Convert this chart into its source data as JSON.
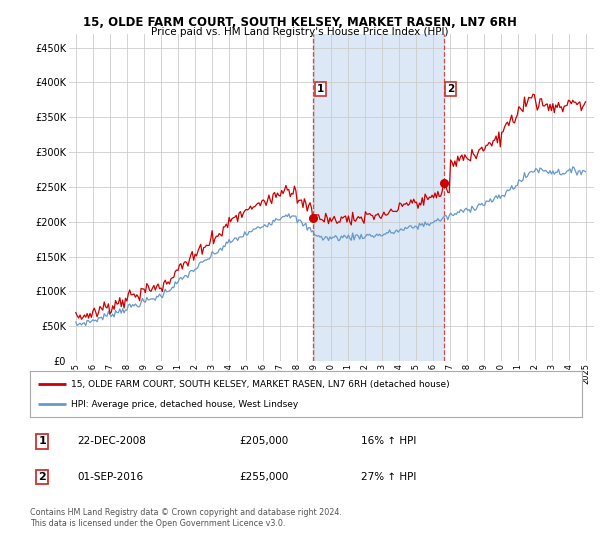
{
  "title": "15, OLDE FARM COURT, SOUTH KELSEY, MARKET RASEN, LN7 6RH",
  "subtitle": "Price paid vs. HM Land Registry's House Price Index (HPI)",
  "red_label": "15, OLDE FARM COURT, SOUTH KELSEY, MARKET RASEN, LN7 6RH (detached house)",
  "blue_label": "HPI: Average price, detached house, West Lindsey",
  "annotation1_date": "22-DEC-2008",
  "annotation1_price": "£205,000",
  "annotation1_hpi": "16% ↑ HPI",
  "annotation2_date": "01-SEP-2016",
  "annotation2_price": "£255,000",
  "annotation2_hpi": "27% ↑ HPI",
  "footer": "Contains HM Land Registry data © Crown copyright and database right 2024.\nThis data is licensed under the Open Government Licence v3.0.",
  "ylim": [
    0,
    470000
  ],
  "yticks": [
    0,
    50000,
    100000,
    150000,
    200000,
    250000,
    300000,
    350000,
    400000,
    450000
  ],
  "ytick_labels": [
    "£0",
    "£50K",
    "£100K",
    "£150K",
    "£200K",
    "£250K",
    "£300K",
    "£350K",
    "£400K",
    "£450K"
  ],
  "sale1_year": 2008.97,
  "sale1_value": 205000,
  "sale2_year": 2016.67,
  "sale2_value": 255000,
  "chart_bg": "#ffffff",
  "fig_bg": "#ffffff",
  "red_color": "#cc0000",
  "blue_color": "#6699cc",
  "vline_color": "#cc3333",
  "highlight_bg": "#dce8f5",
  "grid_color": "#cccccc"
}
